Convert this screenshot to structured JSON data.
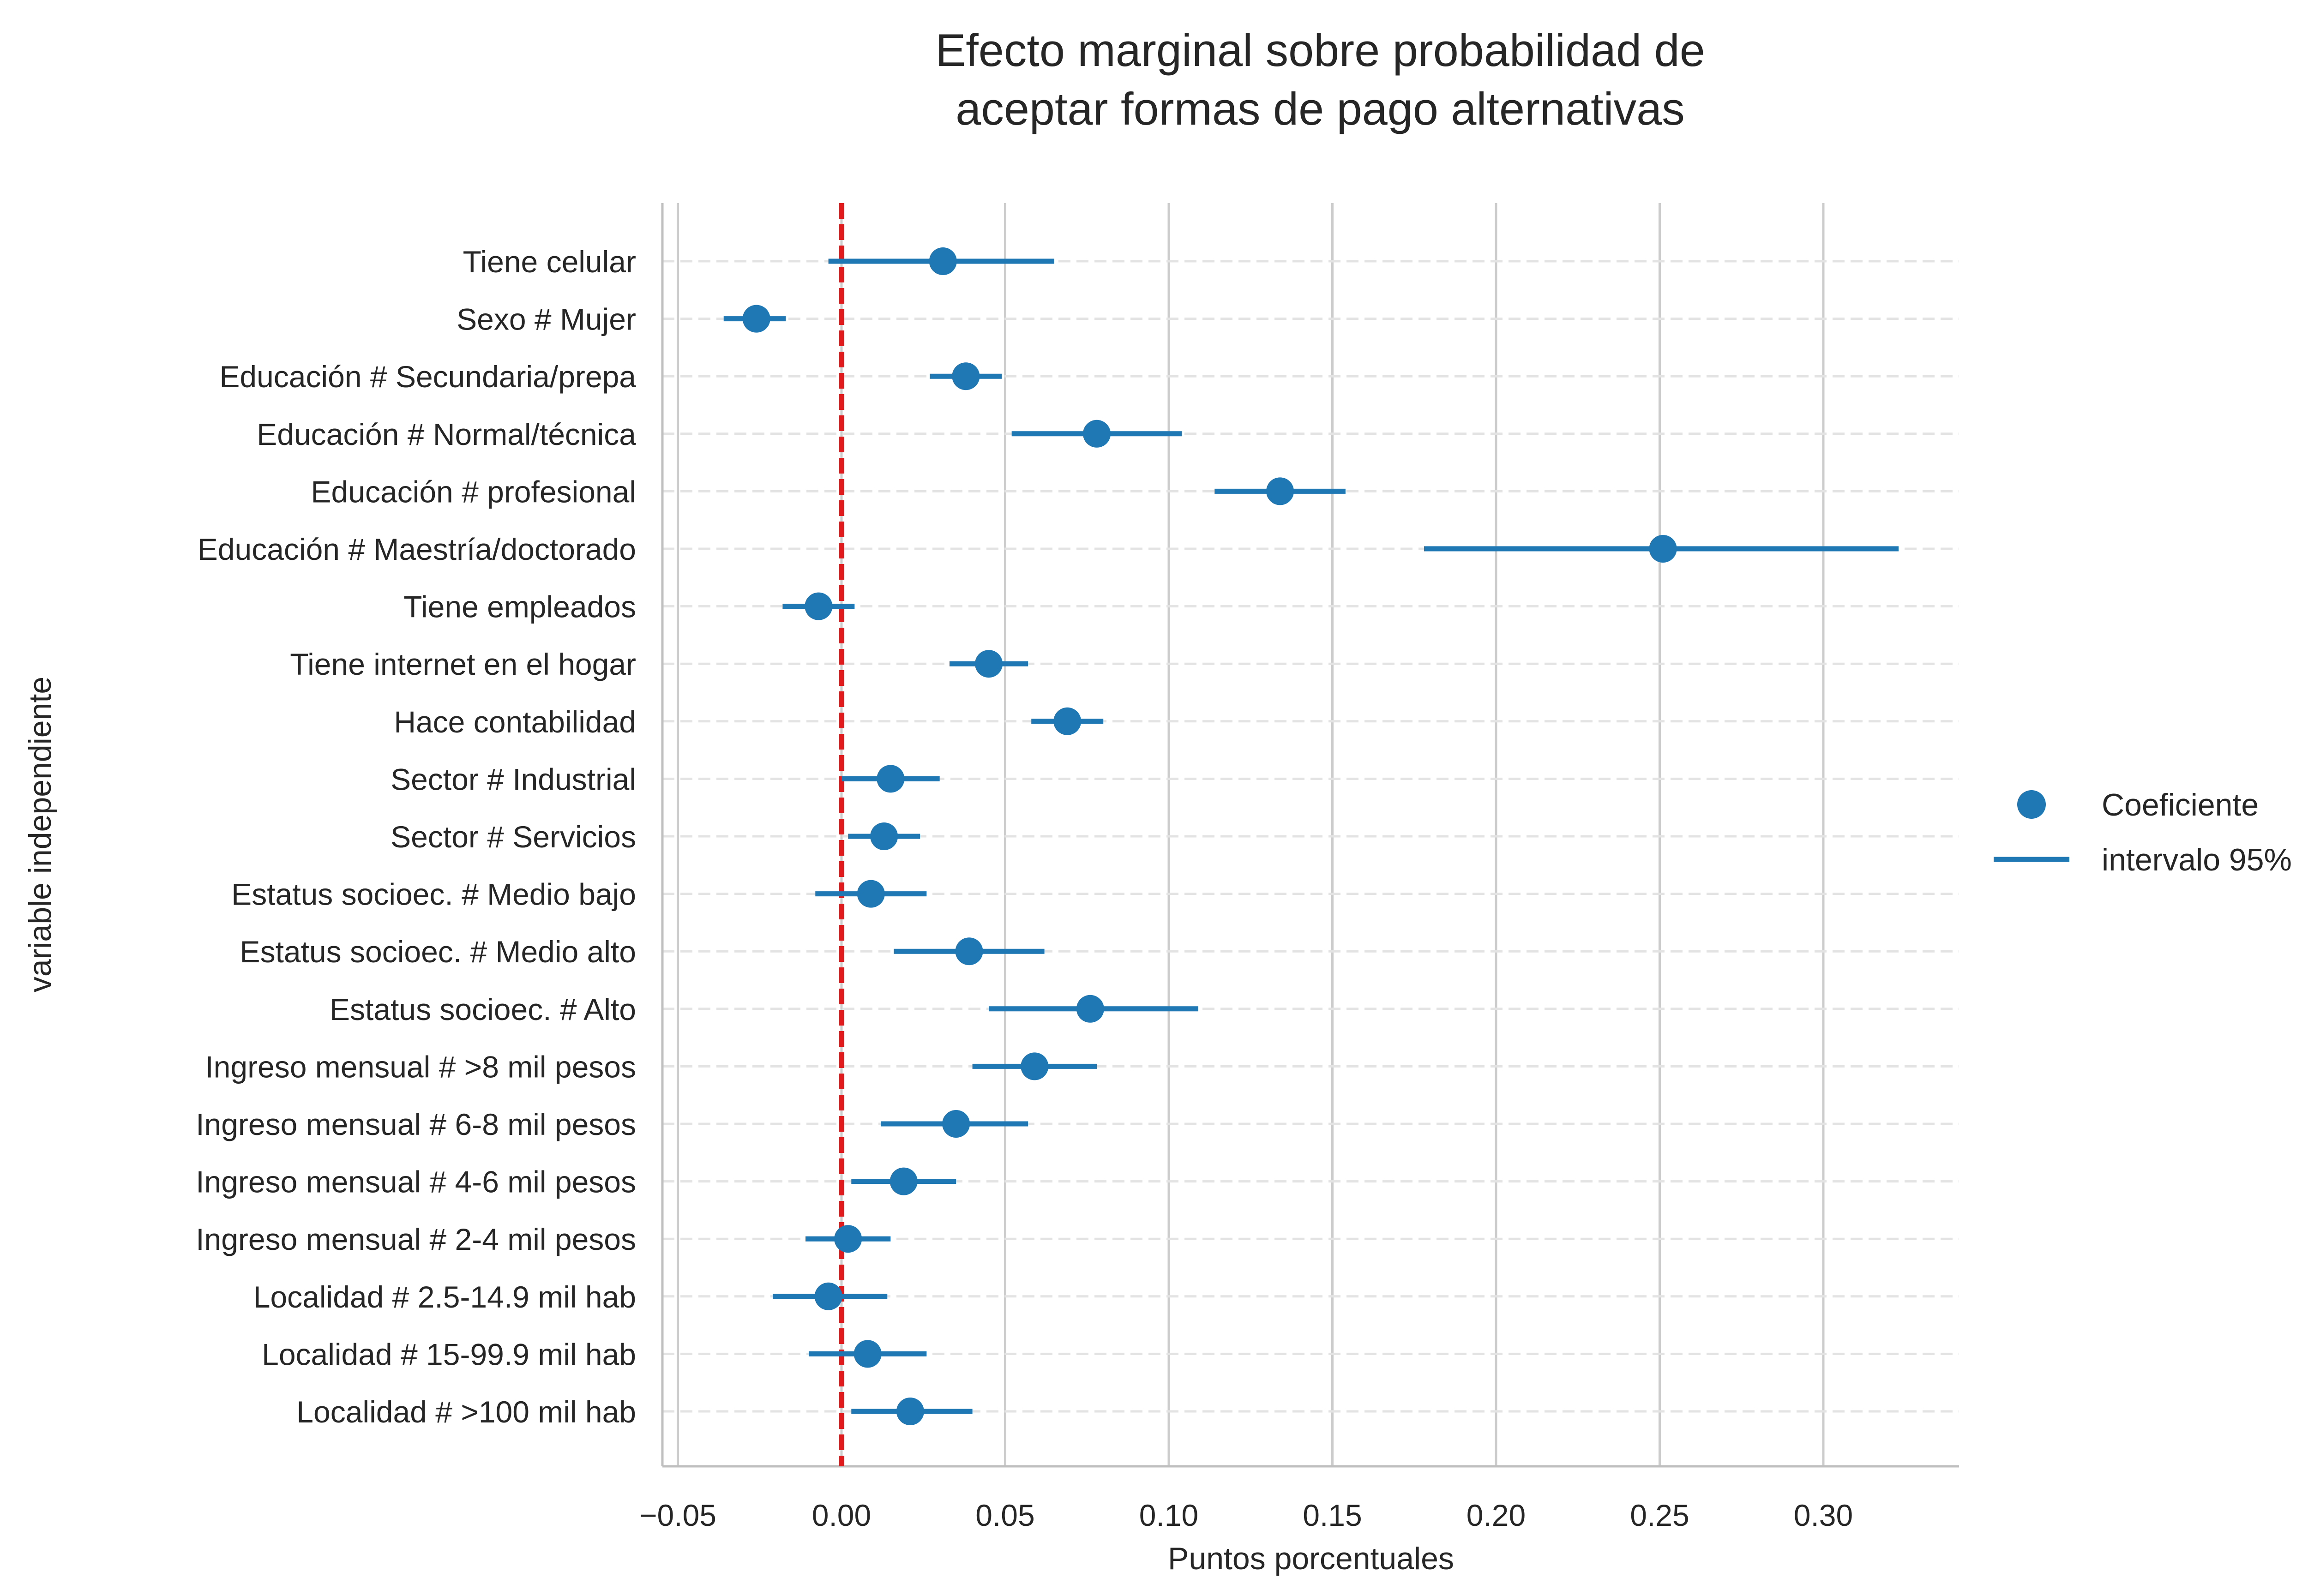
{
  "chart_data": {
    "type": "scatter",
    "title_lines": [
      "Efecto marginal sobre probabilidad de",
      "aceptar formas de pago alternativas"
    ],
    "xlabel": "Puntos porcentuales",
    "ylabel": "variable independiente",
    "xlim": [
      -0.055,
      0.342
    ],
    "xticks": [
      -0.05,
      0.0,
      0.05,
      0.1,
      0.15,
      0.2,
      0.25,
      0.3
    ],
    "xtick_labels": [
      "−0.05",
      "0.00",
      "0.05",
      "0.10",
      "0.15",
      "0.20",
      "0.25",
      "0.30"
    ],
    "reference_line": 0.0,
    "grid": "vertical solid at x ticks; horizontal dashed at categories",
    "legend_position": "center-right",
    "legend": {
      "marker_label": "Coeficiente",
      "line_label": "intervalo 95%"
    },
    "colors": {
      "series": "#1f77b4",
      "reference": "#e31a1c",
      "grid": "#cccccc",
      "hgrid": "#e3e3e3",
      "spine": "#bfbfbf",
      "text": "#262626"
    },
    "categories": [
      "Tiene celular",
      "Sexo # Mujer",
      "Educación # Secundaria/prepa",
      "Educación # Normal/técnica",
      "Educación # profesional",
      "Educación # Maestría/doctorado",
      "Tiene empleados",
      "Tiene internet en el hogar",
      "Hace contabilidad",
      "Sector # Industrial",
      "Sector # Servicios",
      "Estatus socioec. # Medio bajo",
      "Estatus socioec. # Medio alto",
      "Estatus socioec. # Alto",
      "Ingreso mensual # >8 mil pesos",
      "Ingreso mensual # 6-8 mil pesos",
      "Ingreso mensual # 4-6 mil pesos",
      "Ingreso mensual # 2-4 mil pesos",
      "Localidad # 2.5-14.9 mil hab",
      "Localidad # 15-99.9 mil hab",
      "Localidad # >100 mil hab"
    ],
    "series": [
      {
        "name": "Coeficiente",
        "values": [
          0.031,
          -0.026,
          0.038,
          0.078,
          0.134,
          0.251,
          -0.007,
          0.045,
          0.069,
          0.015,
          0.013,
          0.009,
          0.039,
          0.076,
          0.059,
          0.035,
          0.019,
          0.002,
          -0.004,
          0.008,
          0.021
        ]
      },
      {
        "name": "intervalo 95%",
        "lower": [
          -0.004,
          -0.036,
          0.027,
          0.052,
          0.114,
          0.178,
          -0.018,
          0.033,
          0.058,
          0.0,
          0.002,
          -0.008,
          0.016,
          0.045,
          0.04,
          0.012,
          0.003,
          -0.011,
          -0.021,
          -0.01,
          0.003
        ],
        "upper": [
          0.065,
          -0.017,
          0.049,
          0.104,
          0.154,
          0.323,
          0.004,
          0.057,
          0.08,
          0.03,
          0.024,
          0.026,
          0.062,
          0.109,
          0.078,
          0.057,
          0.035,
          0.015,
          0.014,
          0.026,
          0.04
        ]
      }
    ]
  }
}
